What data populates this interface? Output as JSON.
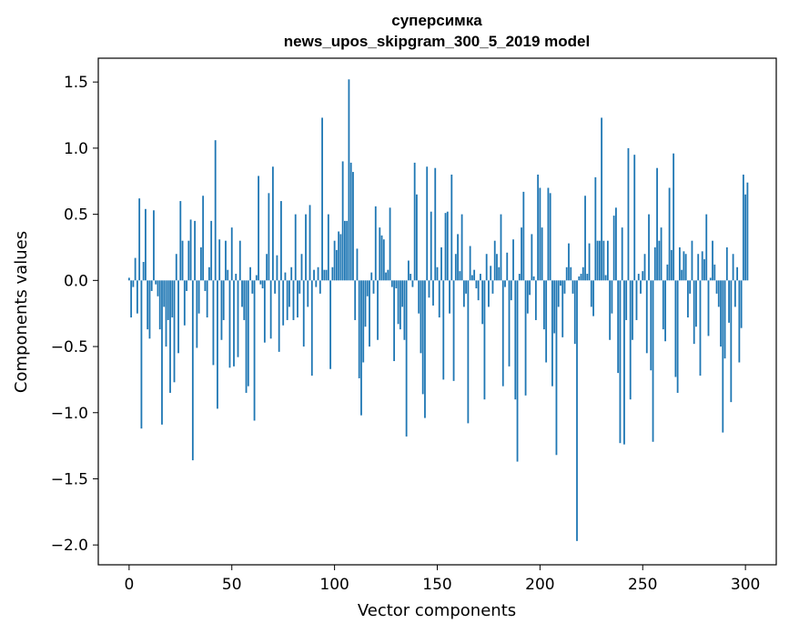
{
  "chart_data": {
    "type": "bar",
    "title": [
      "суперсимка",
      "news_upos_skipgram_300_5_2019 model"
    ],
    "xlabel": "Vector components",
    "ylabel": "Components values",
    "xlim": [
      -15,
      315
    ],
    "ylim": [
      -2.15,
      1.68
    ],
    "x_ticks": [
      0,
      50,
      100,
      150,
      200,
      250,
      300
    ],
    "x_tick_labels": [
      "0",
      "50",
      "100",
      "150",
      "200",
      "250",
      "300"
    ],
    "y_ticks": [
      1.5,
      1.0,
      0.5,
      0.0,
      -0.5,
      -1.0,
      -1.5,
      -2.0
    ],
    "y_tick_labels": [
      "1.5",
      "1.0",
      "0.5",
      "0.0",
      "−0.5",
      "−1.0",
      "−1.5",
      "−2.0"
    ],
    "grid": false,
    "legend": false,
    "bar_color": "#1f77b4",
    "values": [
      0.02,
      -0.28,
      -0.05,
      0.17,
      -0.25,
      0.62,
      -1.12,
      0.14,
      0.54,
      -0.37,
      -0.44,
      -0.08,
      0.53,
      -0.03,
      -0.12,
      -0.37,
      -1.09,
      -0.2,
      -0.5,
      -0.3,
      -0.85,
      -0.28,
      -0.77,
      0.2,
      -0.55,
      0.6,
      0.3,
      -0.34,
      -0.08,
      0.3,
      0.46,
      -1.36,
      0.45,
      -0.51,
      -0.25,
      0.25,
      0.64,
      -0.08,
      -0.28,
      0.1,
      0.45,
      -0.64,
      1.06,
      -0.97,
      0.31,
      -0.45,
      -0.3,
      0.3,
      0.08,
      -0.66,
      0.4,
      -0.65,
      0.05,
      -0.58,
      0.3,
      -0.2,
      -0.3,
      -0.85,
      -0.8,
      0.1,
      -0.1,
      -1.06,
      0.04,
      0.79,
      -0.03,
      -0.06,
      -0.47,
      0.2,
      0.66,
      -0.44,
      0.86,
      -0.1,
      0.19,
      -0.54,
      0.6,
      -0.34,
      0.06,
      -0.3,
      -0.2,
      0.1,
      -0.3,
      0.5,
      -0.28,
      -0.1,
      0.2,
      -0.5,
      0.5,
      -0.2,
      0.57,
      -0.72,
      0.08,
      -0.05,
      0.1,
      -0.1,
      1.23,
      0.08,
      0.08,
      0.5,
      -0.67,
      0.1,
      0.3,
      0.23,
      0.37,
      0.35,
      0.9,
      0.45,
      0.45,
      1.52,
      0.89,
      0.82,
      -0.3,
      0.24,
      -0.74,
      -1.02,
      -0.62,
      -0.35,
      -0.12,
      -0.5,
      0.06,
      -0.1,
      0.56,
      -0.45,
      0.4,
      0.34,
      0.31,
      0.06,
      0.08,
      0.55,
      -0.05,
      -0.61,
      -0.06,
      -0.33,
      -0.37,
      -0.2,
      -0.45,
      -1.18,
      0.15,
      0.05,
      -0.05,
      0.89,
      0.65,
      -0.25,
      -0.55,
      -0.86,
      -1.04,
      0.86,
      -0.13,
      0.52,
      -0.19,
      0.85,
      0.1,
      -0.28,
      0.25,
      -0.75,
      0.51,
      0.52,
      -0.25,
      0.8,
      -0.76,
      0.2,
      0.35,
      0.07,
      0.5,
      -0.2,
      -0.1,
      -1.08,
      0.26,
      0.04,
      0.08,
      -0.06,
      -0.15,
      0.05,
      -0.33,
      -0.9,
      0.2,
      -0.2,
      0.11,
      -0.1,
      0.3,
      0.2,
      0.1,
      0.5,
      -0.8,
      -0.05,
      0.21,
      -0.65,
      -0.15,
      0.31,
      -0.9,
      -1.37,
      0.05,
      0.4,
      0.67,
      -0.87,
      -0.25,
      -0.11,
      0.35,
      0.03,
      -0.3,
      0.8,
      0.7,
      0.4,
      -0.37,
      -0.62,
      0.7,
      0.66,
      -0.8,
      -0.4,
      -1.32,
      -0.2,
      -0.04,
      -0.43,
      -0.1,
      0.1,
      0.28,
      0.1,
      -0.1,
      -0.48,
      -1.97,
      0.03,
      0.05,
      0.1,
      0.64,
      0.05,
      0.28,
      -0.2,
      -0.27,
      0.78,
      0.3,
      0.3,
      1.23,
      0.3,
      0.04,
      0.3,
      -0.45,
      -0.25,
      0.49,
      0.55,
      -0.7,
      -1.23,
      0.4,
      -1.24,
      -0.3,
      1.0,
      -0.9,
      -0.45,
      0.95,
      -0.3,
      0.05,
      -0.1,
      0.07,
      0.2,
      -0.55,
      0.5,
      -0.68,
      -1.22,
      0.25,
      0.85,
      0.3,
      0.4,
      -0.37,
      -0.46,
      0.12,
      0.7,
      0.23,
      0.96,
      -0.73,
      -0.85,
      0.25,
      0.08,
      0.22,
      0.2,
      -0.28,
      -0.1,
      0.3,
      -0.48,
      -0.35,
      0.2,
      -0.72,
      0.22,
      0.16,
      0.5,
      -0.42,
      0.02,
      0.3,
      0.12,
      -0.1,
      -0.2,
      -0.5,
      -1.15,
      -0.59,
      0.25,
      -0.32,
      -0.92,
      0.2,
      -0.2,
      0.1,
      -0.62,
      -0.36,
      0.8,
      0.65,
      0.74
    ]
  }
}
